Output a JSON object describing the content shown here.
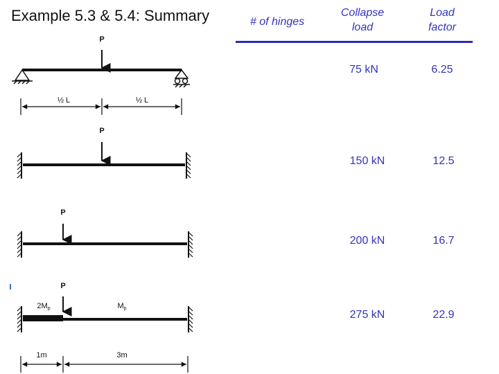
{
  "title": "Example 5.3 & 5.4: Summary",
  "headers": {
    "hinges": "# of hinges",
    "collapse_line1": "Collapse",
    "collapse_line2": "load",
    "factor_line1": "Load",
    "factor_line2": "factor"
  },
  "rows": [
    {
      "collapse_load": "75 kN",
      "load_factor": "6.25"
    },
    {
      "collapse_load": "150 kN",
      "load_factor": "12.5"
    },
    {
      "collapse_load": "200 kN",
      "load_factor": "16.7"
    },
    {
      "collapse_load": "275 kN",
      "load_factor": "22.9"
    }
  ],
  "diagrams": {
    "d1": {
      "load": "P",
      "dim_left": "½ L",
      "dim_right": "½ L"
    },
    "d2": {
      "load": "P"
    },
    "d3": {
      "load": "P"
    },
    "d4": {
      "load": "P",
      "left_moment": "2M",
      "left_moment_sub": "p",
      "right_moment": "M",
      "right_moment_sub": "p",
      "dim_left": "1m",
      "dim_right": "3m"
    }
  },
  "colors": {
    "table_text": "#3333bb",
    "rule": "#2b2bbb",
    "ink": "#111111"
  }
}
